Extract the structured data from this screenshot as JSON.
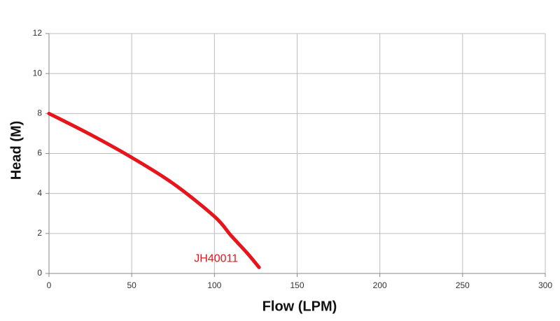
{
  "chart_data": {
    "type": "line",
    "x_label": "Flow (LPM)",
    "y_label": "Head (M)",
    "series": [
      {
        "name": "JH40011",
        "color": "#e8141b",
        "x": [
          0,
          25,
          50,
          75,
          100,
          110,
          120,
          127
        ],
        "values": [
          8,
          6.95,
          5.8,
          4.5,
          2.85,
          1.9,
          1.0,
          0.3
        ]
      }
    ],
    "xlim": [
      0,
      300
    ],
    "xticks": [
      0,
      50,
      100,
      150,
      200,
      250,
      300
    ],
    "ylim": [
      0,
      12
    ],
    "yticks": [
      0,
      2,
      4,
      6,
      8,
      10,
      12
    ],
    "grid": true
  }
}
